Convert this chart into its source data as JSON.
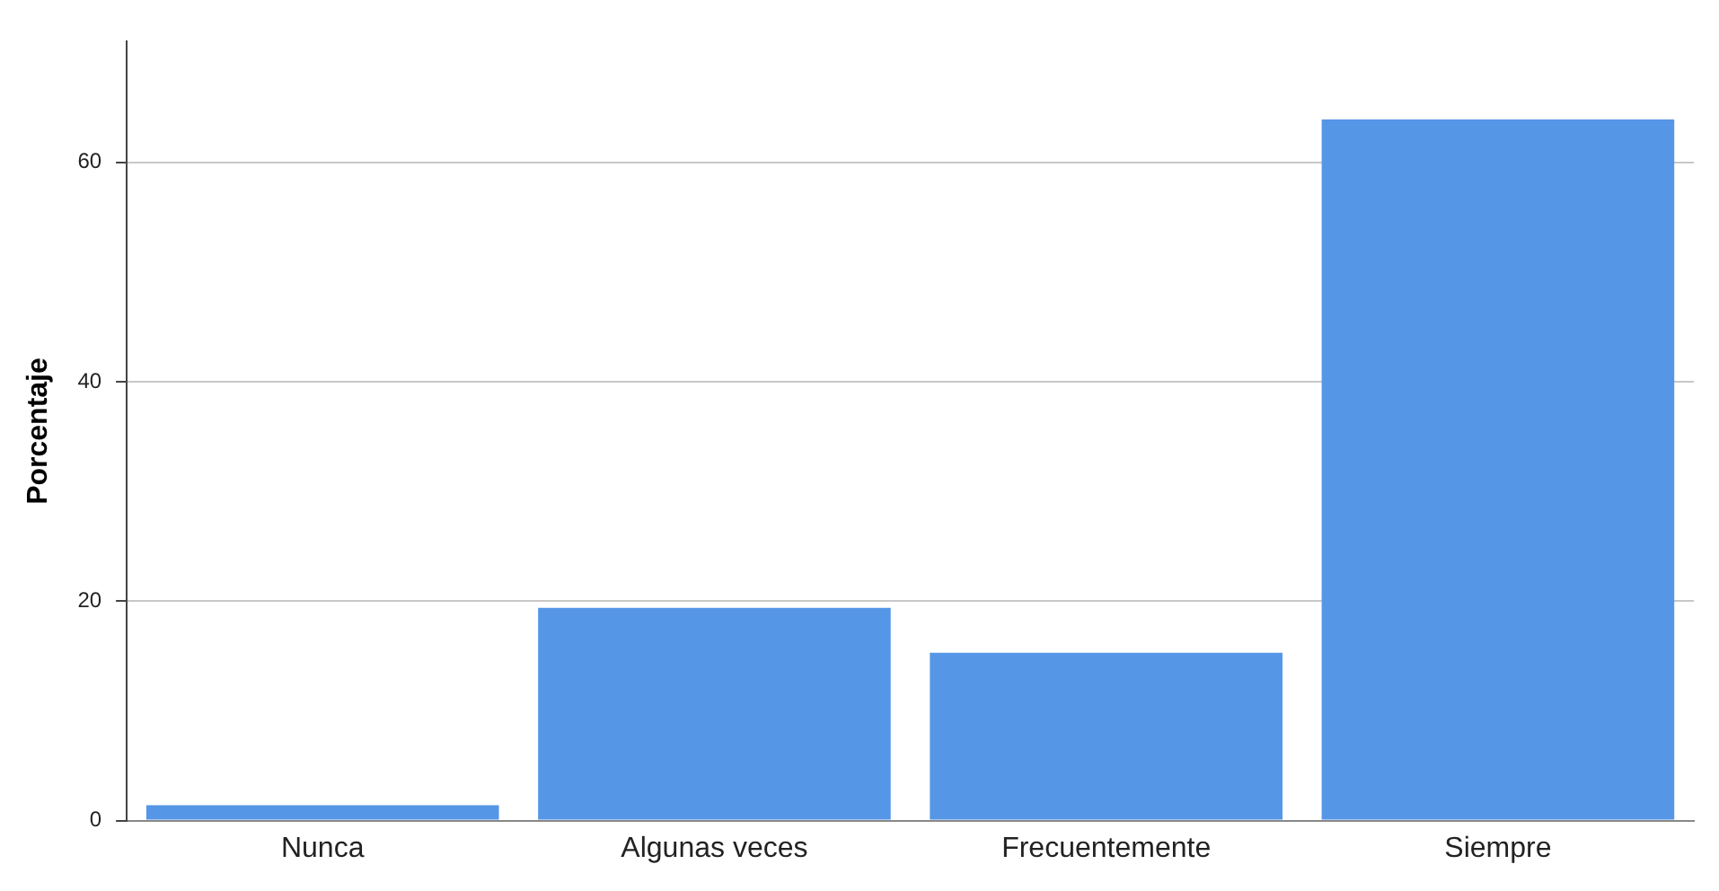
{
  "chart_data": {
    "type": "bar",
    "ylabel": "Porcentaje",
    "categories": [
      "Nunca",
      "Algunas veces",
      "Frecuentemente",
      "Siempre"
    ],
    "values": [
      1.4,
      19.4,
      15.3,
      63.9
    ],
    "color": "#5596e6",
    "ylim": [
      0,
      71
    ],
    "yticks": [
      0,
      20,
      40,
      60
    ],
    "grid": "y"
  }
}
